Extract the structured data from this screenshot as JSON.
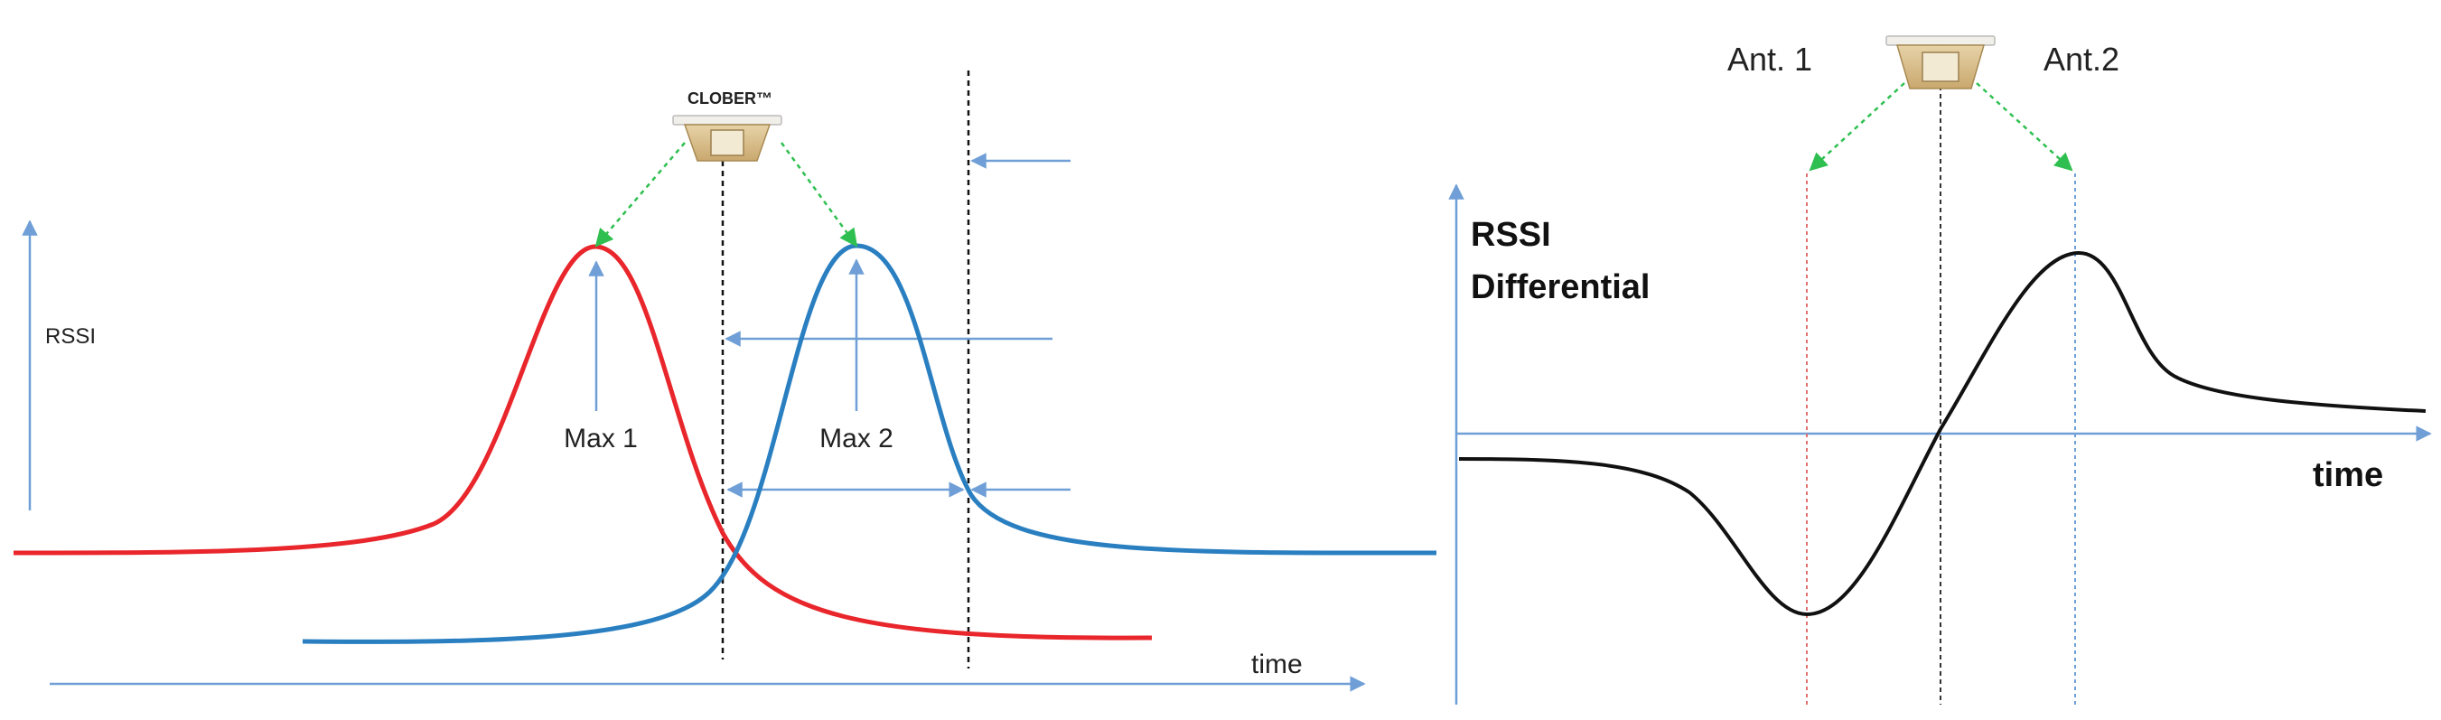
{
  "left_panel": {
    "brand_label": "CLOBER™",
    "y_axis_label": "RSSI",
    "x_axis_label": "time",
    "peak_labels": [
      "Max 1",
      "Max 2"
    ],
    "curve_colors": {
      "antenna_1": "#e8262b",
      "antenna_2": "#2a7fc1"
    },
    "axis_color": "#6f9fd6",
    "beam_color": "#2fbf50"
  },
  "right_panel": {
    "y_axis_label_line1": "RSSI",
    "y_axis_label_line2": "Differential",
    "x_axis_label": "time",
    "antenna_labels": [
      "Ant. 1",
      "Ant.2"
    ],
    "curve_color": "#111111",
    "axis_color": "#6f9fd6",
    "marker_colors": {
      "antenna_1": "#e07070",
      "center": "#333333",
      "antenna_2": "#6f9fd6"
    },
    "beam_color": "#2fbf50"
  }
}
